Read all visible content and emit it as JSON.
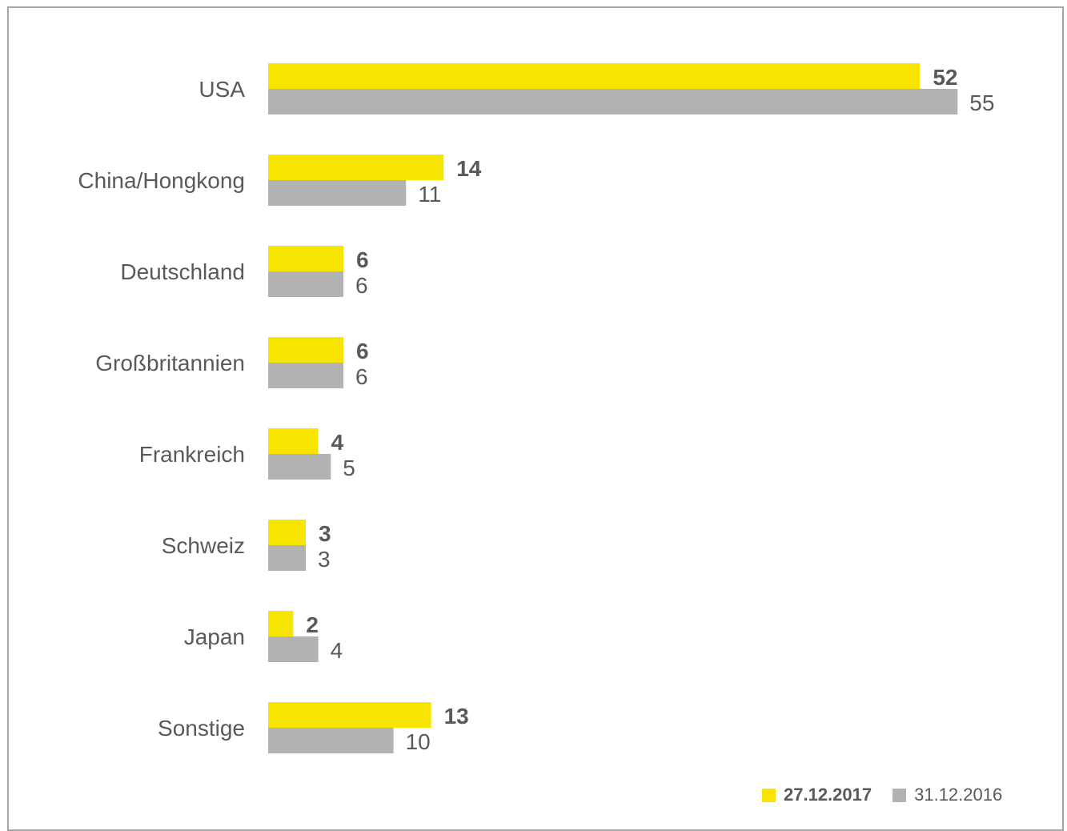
{
  "chart_data": {
    "type": "bar",
    "orientation": "horizontal",
    "categories": [
      "USA",
      "China/Hongkong",
      "Deutschland",
      "Großbritannien",
      "Frankreich",
      "Schweiz",
      "Japan",
      "Sonstige"
    ],
    "series": [
      {
        "name": "27.12.2017",
        "values": [
          52,
          14,
          6,
          6,
          4,
          3,
          2,
          13
        ],
        "color": "#f7e500",
        "label_weight": "bold"
      },
      {
        "name": "31.12.2016",
        "values": [
          55,
          11,
          6,
          6,
          5,
          3,
          4,
          10
        ],
        "color": "#b2b2b2",
        "label_weight": "normal"
      }
    ],
    "xlim": [
      0,
      55
    ],
    "grid": false,
    "legend_position": "bottom-right",
    "data_labels": true
  }
}
